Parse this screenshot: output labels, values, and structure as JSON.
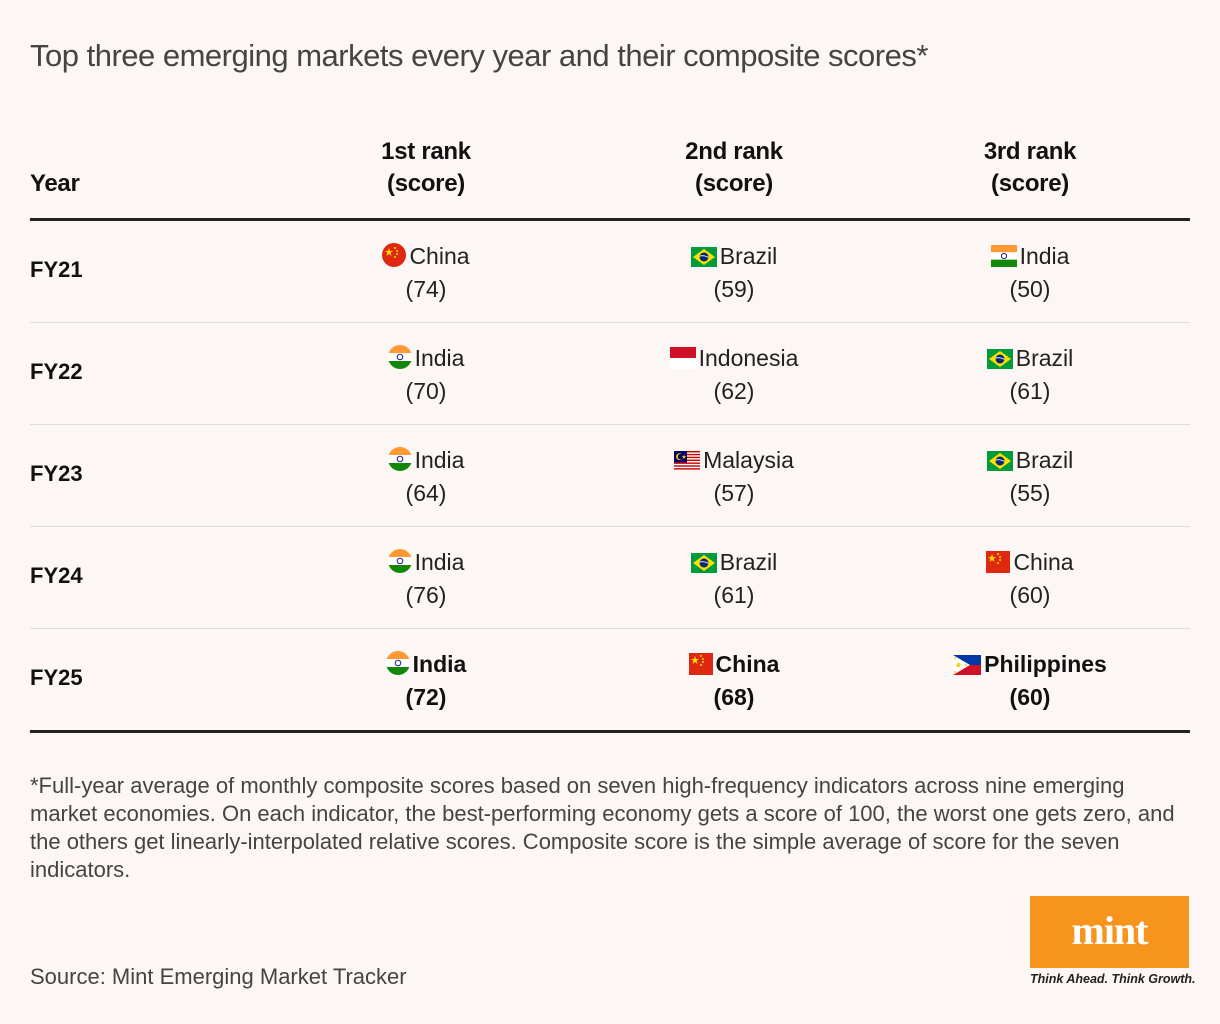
{
  "title": "Top three emerging markets every year and their composite scores*",
  "chart_data": {
    "type": "table",
    "columns": [
      {
        "line1": "Year",
        "line2": ""
      },
      {
        "line1": "1st rank",
        "line2": "(score)"
      },
      {
        "line1": "2nd rank",
        "line2": "(score)"
      },
      {
        "line1": "3rd rank",
        "line2": "(score)"
      }
    ],
    "rows": [
      {
        "year": "FY21",
        "bold": false,
        "cells": [
          {
            "country": "China",
            "flag": "china",
            "score": "(74)"
          },
          {
            "country": "Brazil",
            "flag": "brazil",
            "score": "(59)"
          },
          {
            "country": "India",
            "flag": "india-rect",
            "score": "(50)"
          }
        ]
      },
      {
        "year": "FY22",
        "bold": false,
        "cells": [
          {
            "country": "India",
            "flag": "india",
            "score": "(70)"
          },
          {
            "country": "Indonesia",
            "flag": "indonesia",
            "score": "(62)"
          },
          {
            "country": "Brazil",
            "flag": "brazil",
            "score": "(61)"
          }
        ]
      },
      {
        "year": "FY23",
        "bold": false,
        "cells": [
          {
            "country": "India",
            "flag": "india",
            "score": "(64)"
          },
          {
            "country": "Malaysia",
            "flag": "malaysia",
            "score": "(57)"
          },
          {
            "country": "Brazil",
            "flag": "brazil",
            "score": "(55)"
          }
        ]
      },
      {
        "year": "FY24",
        "bold": false,
        "cells": [
          {
            "country": "India",
            "flag": "india",
            "score": "(76)"
          },
          {
            "country": "Brazil",
            "flag": "brazil",
            "score": "(61)"
          },
          {
            "country": "China",
            "flag": "china-rect",
            "score": "(60)"
          }
        ]
      },
      {
        "year": "FY25",
        "bold": true,
        "cells": [
          {
            "country": "India",
            "flag": "india",
            "score": "(72)"
          },
          {
            "country": "China",
            "flag": "china-rect",
            "score": "(68)"
          },
          {
            "country": "Philippines",
            "flag": "philippines",
            "score": "(60)"
          }
        ]
      }
    ]
  },
  "footnote": "*Full-year average of monthly composite scores based on seven high-frequency indicators across nine emerging market economies. On each indicator, the best-performing economy gets a score of 100, the worst one gets zero, and the others get linearly-interpolated relative scores. Composite score is the simple average of score for the seven indicators.",
  "source": "Source: Mint Emerging Market Tracker",
  "logo": {
    "text": "mint",
    "tagline": "Think Ahead. Think Growth.",
    "color": "#f7941d"
  }
}
